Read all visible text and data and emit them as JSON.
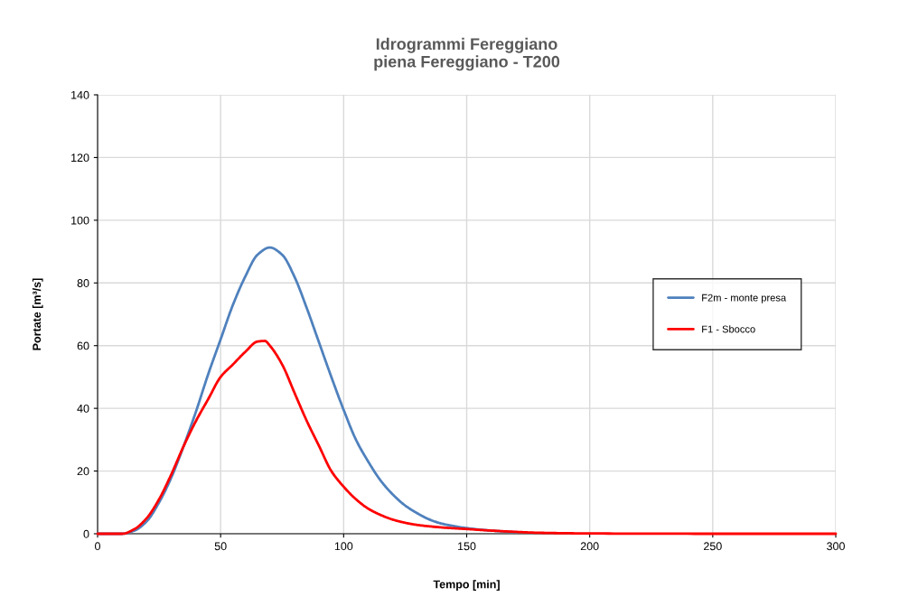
{
  "chart_data": {
    "type": "line",
    "title": "Idrogrammi Fereggiano\npiena Fereggiano - T200",
    "xlabel": "Tempo [min]",
    "ylabel": "Portate [m³/s]",
    "x": [
      0,
      10,
      15,
      20,
      25,
      30,
      35,
      40,
      45,
      50,
      55,
      60,
      65,
      68,
      70,
      75,
      80,
      85,
      90,
      95,
      100,
      105,
      110,
      115,
      120,
      125,
      130,
      140,
      150,
      160,
      170,
      180,
      200,
      250,
      300
    ],
    "series": [
      {
        "name": "F2m - monte presa",
        "color": "#4f81bd",
        "x": [
          0,
          10,
          15,
          20,
          25,
          30,
          35,
          40,
          45,
          50,
          55,
          60,
          65,
          70,
          75,
          80,
          85,
          90,
          95,
          100,
          105,
          110,
          115,
          120,
          125,
          130,
          135,
          140,
          150,
          160,
          170
        ],
        "values": [
          0,
          0,
          1,
          4,
          10,
          18,
          28,
          39,
          51,
          62,
          73,
          82,
          89,
          91.3,
          89,
          82,
          72,
          61,
          50,
          39.5,
          30,
          23,
          17,
          12.5,
          9,
          6.5,
          4.5,
          3.2,
          1.8,
          1,
          0.5
        ]
      },
      {
        "name": "F1 - Sbocco",
        "color": "#ff0000",
        "values": [
          0,
          0,
          1.5,
          5,
          11,
          19,
          28,
          36,
          43,
          50,
          54,
          58,
          61.3,
          61.5,
          60,
          54,
          45,
          36,
          28,
          20,
          15,
          11,
          8,
          6,
          4.5,
          3.5,
          2.8,
          2,
          1.5,
          1,
          0.6,
          0.3,
          0.1,
          0,
          0
        ]
      }
    ],
    "xlim": [
      0,
      300
    ],
    "xticks": [
      0,
      50,
      100,
      150,
      200,
      250,
      300
    ],
    "ylim": [
      0,
      140
    ],
    "yticks": [
      0,
      20,
      40,
      60,
      80,
      100,
      120,
      140
    ],
    "grid": true,
    "legend": "right",
    "marker": "none",
    "line_style": "solid"
  }
}
